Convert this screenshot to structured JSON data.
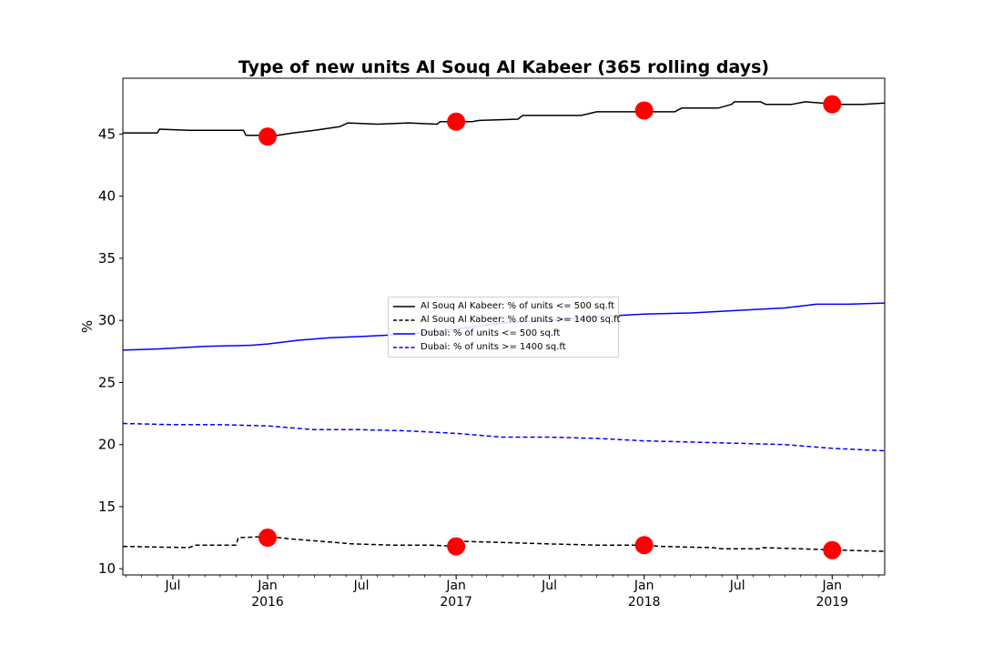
{
  "chart_data": {
    "type": "line",
    "title": "Type of new units Al Souq Al Kabeer (365 rolling days)",
    "xlabel": "",
    "ylabel": "%",
    "xlim": [
      "2015-03-26",
      "2019-04-13"
    ],
    "ylim": [
      9.5,
      49.5
    ],
    "y_ticks": [
      10,
      15,
      20,
      25,
      30,
      35,
      40,
      45
    ],
    "x_ticks": [
      {
        "date": "2015-07-01",
        "label": "Jul",
        "sublabel": ""
      },
      {
        "date": "2016-01-01",
        "label": "Jan",
        "sublabel": "2016"
      },
      {
        "date": "2016-07-01",
        "label": "Jul",
        "sublabel": ""
      },
      {
        "date": "2017-01-01",
        "label": "Jan",
        "sublabel": "2017"
      },
      {
        "date": "2017-07-01",
        "label": "Jul",
        "sublabel": ""
      },
      {
        "date": "2018-01-01",
        "label": "Jan",
        "sublabel": "2018"
      },
      {
        "date": "2018-07-01",
        "label": "Jul",
        "sublabel": ""
      },
      {
        "date": "2019-01-01",
        "label": "Jan",
        "sublabel": "2019"
      }
    ],
    "legend_position": "center",
    "series": [
      {
        "name": "Al Souq Al Kabeer: % of units <= 500 sq.ft",
        "color": "#000000",
        "dashed": false,
        "points": [
          [
            "2015-03-26",
            45.1
          ],
          [
            "2015-06-01",
            45.1
          ],
          [
            "2015-06-05",
            45.4
          ],
          [
            "2015-08-01",
            45.3
          ],
          [
            "2015-11-15",
            45.3
          ],
          [
            "2015-11-20",
            44.9
          ],
          [
            "2016-01-20",
            44.9
          ],
          [
            "2016-02-20",
            45.1
          ],
          [
            "2016-04-01",
            45.3
          ],
          [
            "2016-05-20",
            45.6
          ],
          [
            "2016-06-05",
            45.9
          ],
          [
            "2016-08-01",
            45.8
          ],
          [
            "2016-10-01",
            45.9
          ],
          [
            "2016-11-25",
            45.8
          ],
          [
            "2016-12-01",
            46.0
          ],
          [
            "2017-02-01",
            46.0
          ],
          [
            "2017-02-15",
            46.1
          ],
          [
            "2017-05-01",
            46.2
          ],
          [
            "2017-05-10",
            46.5
          ],
          [
            "2017-09-01",
            46.5
          ],
          [
            "2017-10-01",
            46.8
          ],
          [
            "2018-03-01",
            46.8
          ],
          [
            "2018-03-15",
            47.1
          ],
          [
            "2018-05-25",
            47.1
          ],
          [
            "2018-06-20",
            47.4
          ],
          [
            "2018-06-25",
            47.6
          ],
          [
            "2018-08-15",
            47.6
          ],
          [
            "2018-08-25",
            47.4
          ],
          [
            "2018-10-15",
            47.4
          ],
          [
            "2018-11-10",
            47.6
          ],
          [
            "2019-01-15",
            47.4
          ],
          [
            "2019-03-01",
            47.4
          ],
          [
            "2019-04-13",
            47.5
          ]
        ]
      },
      {
        "name": "Al Souq Al Kabeer: % of units >= 1400 sq.ft",
        "color": "#000000",
        "dashed": true,
        "points": [
          [
            "2015-03-26",
            11.8
          ],
          [
            "2015-08-01",
            11.7
          ],
          [
            "2015-08-15",
            11.9
          ],
          [
            "2015-11-01",
            11.9
          ],
          [
            "2015-11-05",
            12.5
          ],
          [
            "2016-01-01",
            12.6
          ],
          [
            "2016-02-15",
            12.4
          ],
          [
            "2016-04-15",
            12.2
          ],
          [
            "2016-06-15",
            12.0
          ],
          [
            "2016-09-01",
            11.9
          ],
          [
            "2016-11-15",
            11.9
          ],
          [
            "2017-01-01",
            11.8
          ],
          [
            "2017-01-15",
            12.2
          ],
          [
            "2017-04-15",
            12.1
          ],
          [
            "2017-07-01",
            12.0
          ],
          [
            "2017-10-01",
            11.9
          ],
          [
            "2017-12-31",
            11.9
          ],
          [
            "2018-02-01",
            11.8
          ],
          [
            "2018-05-15",
            11.7
          ],
          [
            "2018-06-01",
            11.6
          ],
          [
            "2018-08-15",
            11.6
          ],
          [
            "2018-08-20",
            11.7
          ],
          [
            "2018-11-01",
            11.6
          ],
          [
            "2019-01-15",
            11.5
          ],
          [
            "2019-04-13",
            11.4
          ]
        ]
      },
      {
        "name": "Dubai: % of units <= 500 sq.ft",
        "color": "#0000ff",
        "dashed": false,
        "points": [
          [
            "2015-03-26",
            27.6
          ],
          [
            "2015-06-01",
            27.7
          ],
          [
            "2015-09-01",
            27.9
          ],
          [
            "2015-12-01",
            28.0
          ],
          [
            "2016-01-01",
            28.1
          ],
          [
            "2016-03-01",
            28.4
          ],
          [
            "2016-05-01",
            28.6
          ],
          [
            "2016-07-01",
            28.7
          ],
          [
            "2016-10-01",
            28.9
          ],
          [
            "2017-01-01",
            29.3
          ],
          [
            "2017-04-01",
            29.8
          ],
          [
            "2017-07-01",
            30.0
          ],
          [
            "2017-10-01",
            30.3
          ],
          [
            "2018-01-01",
            30.5
          ],
          [
            "2018-04-01",
            30.6
          ],
          [
            "2018-07-01",
            30.8
          ],
          [
            "2018-10-01",
            31.0
          ],
          [
            "2018-12-01",
            31.3
          ],
          [
            "2019-02-01",
            31.3
          ],
          [
            "2019-04-13",
            31.4
          ]
        ]
      },
      {
        "name": "Dubai: % of units >= 1400 sq.ft",
        "color": "#0000ff",
        "dashed": true,
        "points": [
          [
            "2015-03-26",
            21.7
          ],
          [
            "2015-07-01",
            21.6
          ],
          [
            "2015-10-01",
            21.6
          ],
          [
            "2016-01-01",
            21.5
          ],
          [
            "2016-04-01",
            21.2
          ],
          [
            "2016-07-01",
            21.2
          ],
          [
            "2016-10-01",
            21.1
          ],
          [
            "2017-01-01",
            20.9
          ],
          [
            "2017-04-01",
            20.6
          ],
          [
            "2017-07-01",
            20.6
          ],
          [
            "2017-10-01",
            20.5
          ],
          [
            "2018-01-01",
            20.3
          ],
          [
            "2018-04-01",
            20.2
          ],
          [
            "2018-07-01",
            20.1
          ],
          [
            "2018-10-01",
            20.0
          ],
          [
            "2019-01-01",
            19.7
          ],
          [
            "2019-04-13",
            19.5
          ]
        ]
      }
    ],
    "markers": {
      "color": "#ff0000",
      "points": [
        [
          "2016-01-01",
          44.8
        ],
        [
          "2017-01-01",
          46.0
        ],
        [
          "2018-01-01",
          46.9
        ],
        [
          "2019-01-01",
          47.4
        ],
        [
          "2016-01-01",
          12.5
        ],
        [
          "2017-01-01",
          11.8
        ],
        [
          "2018-01-01",
          11.9
        ],
        [
          "2019-01-01",
          11.5
        ]
      ]
    }
  }
}
